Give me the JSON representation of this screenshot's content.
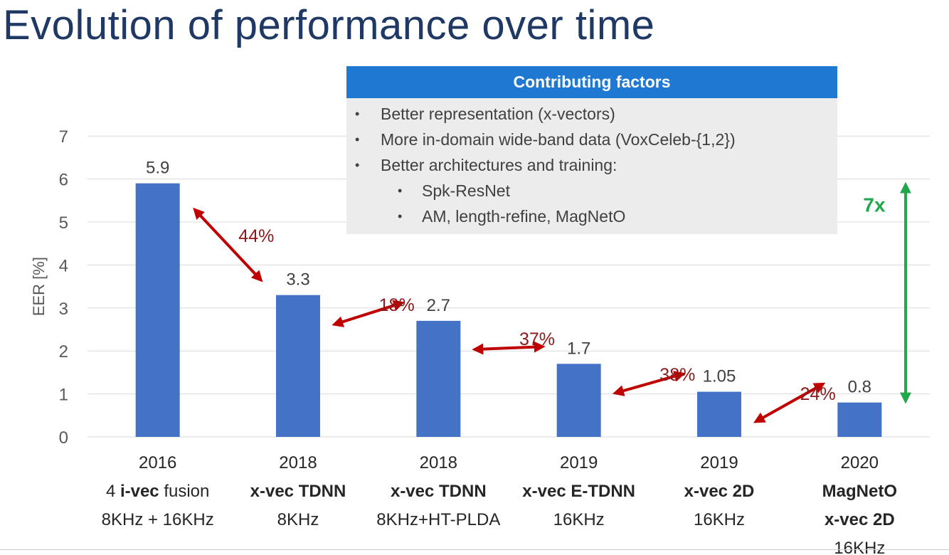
{
  "slide": {
    "title": "Evolution of performance over time"
  },
  "factors": {
    "header": "Contributing factors",
    "items": [
      {
        "level": 1,
        "text": "Better representation (x-vectors)"
      },
      {
        "level": 1,
        "text": "More in-domain wide-band data (VoxCeleb-{1,2})"
      },
      {
        "level": 1,
        "text": "Better architectures and training:"
      },
      {
        "level": 2,
        "text": "Spk-ResNet"
      },
      {
        "level": 2,
        "text": "AM, length-refine, MagNetO"
      }
    ]
  },
  "colors": {
    "title": "#1f3864",
    "bar": "#4472c4",
    "arrow": "#c00000",
    "arrow_label": "#8b1a1a",
    "overall": "#21a84d",
    "header_bg": "#1f78d1",
    "box_bg": "#ececec",
    "grid": "#d9d9d9"
  },
  "chart_data": {
    "type": "bar",
    "ylabel": "EER [%]",
    "ylim": [
      0,
      7
    ],
    "yticks": [
      0,
      1,
      2,
      3,
      4,
      5,
      6,
      7
    ],
    "grid": true,
    "categories": [
      {
        "year": "2016",
        "system": [
          {
            "t": "4 ",
            "b": false
          },
          {
            "t": "i-vec",
            "b": true
          },
          {
            "t": " fusion",
            "b": false
          }
        ],
        "extra": [
          "8KHz + 16KHz"
        ]
      },
      {
        "year": "2018",
        "system": [
          {
            "t": "x-vec TDNN",
            "b": true
          }
        ],
        "extra": [
          "8KHz"
        ]
      },
      {
        "year": "2018",
        "system": [
          {
            "t": "x-vec TDNN",
            "b": true
          }
        ],
        "extra": [
          "8KHz+HT-PLDA"
        ]
      },
      {
        "year": "2019",
        "system": [
          {
            "t": "x-vec E-TDNN",
            "b": true
          }
        ],
        "extra": [
          "16KHz"
        ]
      },
      {
        "year": "2019",
        "system": [
          {
            "t": "x-vec 2D",
            "b": true
          }
        ],
        "extra": [
          "16KHz"
        ]
      },
      {
        "year": "2020",
        "system": [
          {
            "t": "MagNetO",
            "b": true
          }
        ],
        "extra": [
          {
            "t": "x-vec 2D",
            "b": true
          },
          "16KHz"
        ]
      }
    ],
    "values": [
      5.9,
      3.3,
      2.7,
      1.7,
      1.05,
      0.8
    ],
    "value_labels": [
      "5.9",
      "3.3",
      "2.7",
      "1.7",
      "1.05",
      "0.8"
    ],
    "improvements": [
      "44%",
      "18%",
      "37%",
      "38%",
      "24%"
    ],
    "overall_improvement": "7x"
  }
}
